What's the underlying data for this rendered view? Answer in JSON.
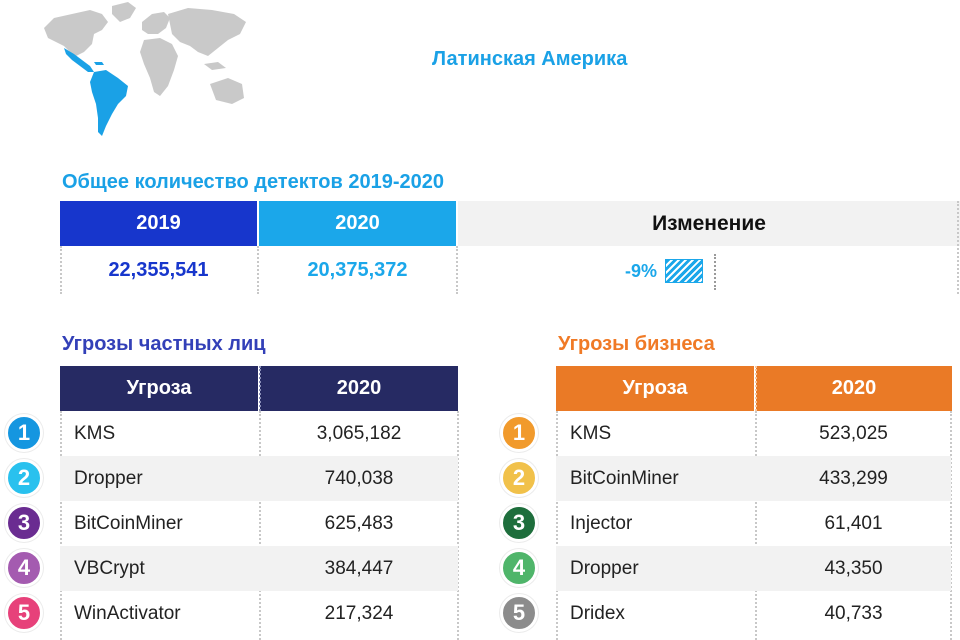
{
  "region": {
    "title": "Латинская Америка",
    "map_icon": "world-map-latin-america-highlight",
    "highlight_color": "#1aa1e6",
    "land_color": "#c8c8c8"
  },
  "totals": {
    "title": "Общее количество детектов 2019-2020",
    "headers": {
      "y2019": "2019",
      "y2020": "2020",
      "change": "Изменение"
    },
    "values": {
      "y2019": "22,355,541",
      "y2020": "20,375,372",
      "change": "-9%"
    },
    "change_fraction": -0.09,
    "colors": {
      "y2019": "#1736cc",
      "y2020": "#1ba7ea"
    }
  },
  "consumer": {
    "title": "Угрозы частных лиц",
    "header_color": "#262a63",
    "headers": {
      "threat": "Угроза",
      "year": "2020"
    },
    "rows": [
      {
        "rank": "1",
        "name": "KMS",
        "value": "3,065,182",
        "badge_color": "#1596e0"
      },
      {
        "rank": "2",
        "name": "Dropper",
        "value": "740,038",
        "badge_color": "#29c1ee"
      },
      {
        "rank": "3",
        "name": "BitCoinMiner",
        "value": "625,483",
        "badge_color": "#6a2c91"
      },
      {
        "rank": "4",
        "name": "VBCrypt",
        "value": "384,447",
        "badge_color": "#a45bb0"
      },
      {
        "rank": "5",
        "name": "WinActivator",
        "value": "217,324",
        "badge_color": "#e7417a"
      }
    ]
  },
  "business": {
    "title": "Угрозы бизнеса",
    "header_color": "#ea7a26",
    "headers": {
      "threat": "Угроза",
      "year": "2020"
    },
    "rows": [
      {
        "rank": "1",
        "name": "KMS",
        "value": "523,025",
        "badge_color": "#f19a2c"
      },
      {
        "rank": "2",
        "name": "BitCoinMiner",
        "value": "433,299",
        "badge_color": "#f1c14a"
      },
      {
        "rank": "3",
        "name": "Injector",
        "value": "61,401",
        "badge_color": "#1e6e3c"
      },
      {
        "rank": "4",
        "name": "Dropper",
        "value": "43,350",
        "badge_color": "#4fb56a"
      },
      {
        "rank": "5",
        "name": "Dridex",
        "value": "40,733",
        "badge_color": "#8c8c8c"
      }
    ]
  }
}
